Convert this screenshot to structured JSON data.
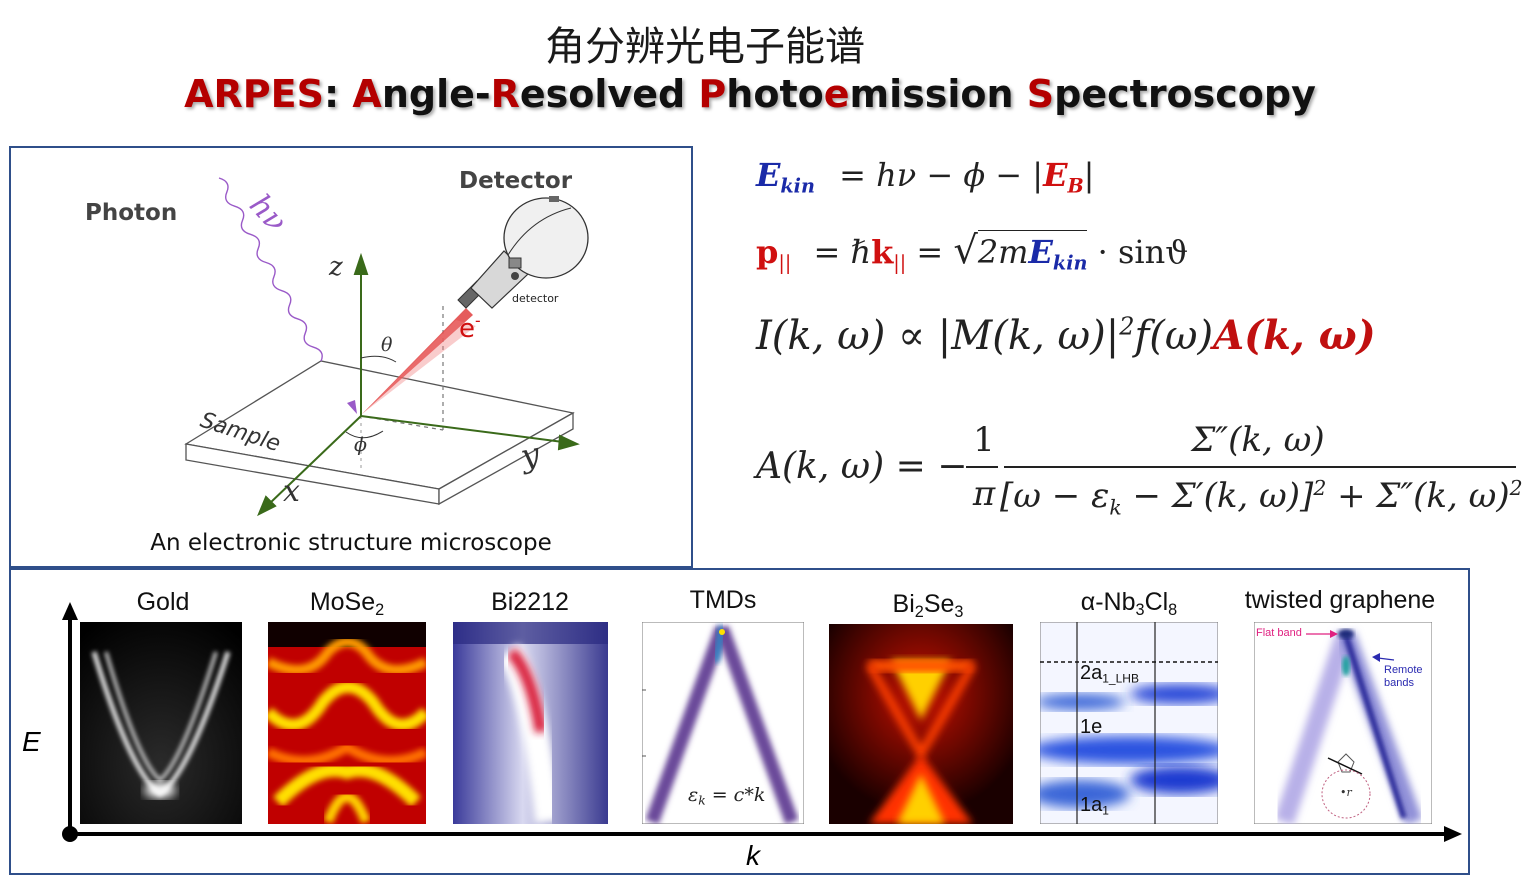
{
  "title": {
    "chinese": "角分辨光电子能谱",
    "arpes": "ARPES",
    "colon": ":",
    "w1_first": "A",
    "w1_rest": "ngle-",
    "w2_first": "R",
    "w2_rest": "esolved",
    "w3_first": "P",
    "w3_mid": "hoto",
    "w3_e": "e",
    "w3_rest": "mission",
    "w4_first": "S",
    "w4_rest": "pectroscopy"
  },
  "setup": {
    "photon_label": "Photon",
    "detector_label": "Detector",
    "hv_label": "hν",
    "detector_small": "detector",
    "electron_label": "e",
    "electron_charge": "-",
    "z_label": "z",
    "y_label": "y",
    "x_label": "x",
    "theta_label": "θ",
    "phi_label": "ϕ",
    "sample_label": "Sample",
    "caption": "An electronic structure microscope"
  },
  "equations": {
    "eq1_lhs": "E",
    "eq1_lhs_sub": "kin",
    "eq1_rhs": "= hν − ϕ − |",
    "eq1_eb": "E",
    "eq1_eb_sub": "B",
    "eq1_end": "|",
    "eq2_p": "p",
    "eq2_p_sub": "||",
    "eq2_mid": "= ℏ",
    "eq2_k": "k",
    "eq2_k_sub": "||",
    "eq2_eq": "=",
    "eq2_root_text": "2m",
    "eq2_e": "E",
    "eq2_e_sub": "kin",
    "eq2_end": "· sinϑ",
    "eq3_main": "I(k, ω) ∝ |M(k, ω)|",
    "eq3_sq": "2",
    "eq3_f": "f(ω)",
    "eq3_A": "A(k, ω)",
    "eq4_lhs": "A(k, ω) = −",
    "eq4_num1": "1",
    "eq4_den1": "π",
    "eq4_num2": "Σ″(k, ω)",
    "eq4_den2a": "[ω − ε",
    "eq4_den2a_sub": "k",
    "eq4_den2b": " − Σ′(k, ω)]",
    "eq4_den2_sq1": "2",
    "eq4_den2c": " + Σ″(k, ω)",
    "eq4_den2_sq2": "2"
  },
  "spectra": {
    "axis_e": "E",
    "axis_k": "k",
    "panels": [
      {
        "title": "Gold",
        "sub": "",
        "after": ""
      },
      {
        "title": "MoSe",
        "sub": "2",
        "after": ""
      },
      {
        "title": "Bi2212",
        "sub": "",
        "after": ""
      },
      {
        "title": "TMDs",
        "sub": "",
        "after": ""
      },
      {
        "title": "Bi",
        "sub": "2",
        "after": "Se",
        "sub2": "3"
      },
      {
        "title": "α-Nb",
        "sub": "3",
        "after": "Cl",
        "sub2": "8"
      },
      {
        "title": "twisted graphene",
        "sub": "",
        "after": ""
      }
    ],
    "tmd_formula": "ε",
    "tmd_formula_sub": "k",
    "tmd_formula_rest": " = c*k",
    "nb_labels": {
      "l1": "2a",
      "l1_sub": "1_LHB",
      "l2": "1e",
      "l3": "1a",
      "l3_sub": "1"
    },
    "graphene_labels": {
      "flat": "Flat band",
      "remote1": "Remote",
      "remote2": "bands",
      "gamma": "•r"
    }
  },
  "colors": {
    "border": "#2f4f8a",
    "title_red": "#b40000",
    "eq_blue": "#1a2aa8",
    "eq_red": "#d01010",
    "axis_green": "#3a6a1a",
    "photon_purple": "#9a5ac8"
  }
}
